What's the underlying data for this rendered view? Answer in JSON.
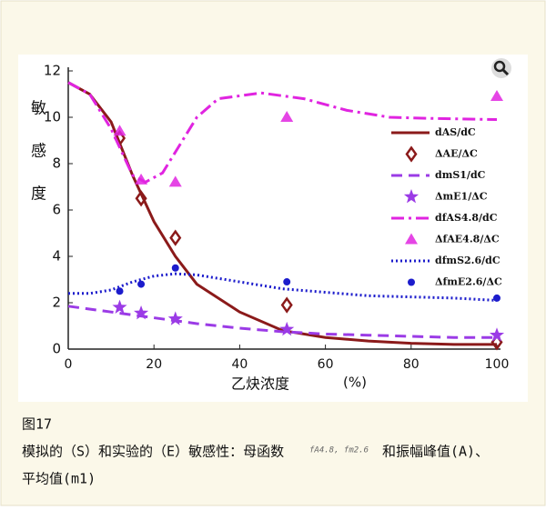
{
  "chart_data": {
    "type": "line",
    "ylabel": "敏感度",
    "xlabel": "乙炔浓度",
    "xunit": "(%)",
    "xlim": [
      0,
      100
    ],
    "xticks": [
      0,
      20,
      40,
      60,
      80,
      100
    ],
    "ylim": [
      0,
      12
    ],
    "yticks": [
      0,
      2,
      4,
      6,
      8,
      10,
      12
    ],
    "legend": "upper right",
    "series": [
      {
        "name": "dAS/dC",
        "color": "#8b1a1a",
        "style": "solid",
        "x": [
          0,
          5,
          10,
          15,
          20,
          25,
          30,
          40,
          50,
          60,
          70,
          80,
          90,
          100
        ],
        "values": [
          11.5,
          11,
          9.8,
          7.5,
          5.5,
          4,
          2.8,
          1.6,
          0.8,
          0.5,
          0.35,
          0.25,
          0.2,
          0.2
        ]
      },
      {
        "name": "ΔAE/ΔC",
        "color": "#8b1a1a",
        "marker": "diamond",
        "x": [
          12,
          17,
          25,
          51,
          100
        ],
        "values": [
          9.1,
          6.5,
          4.8,
          1.9,
          0.3
        ]
      },
      {
        "name": "dmS1/dC",
        "color": "#9b3be6",
        "style": "dashed",
        "x": [
          0,
          10,
          20,
          30,
          40,
          50,
          60,
          70,
          80,
          90,
          100
        ],
        "values": [
          1.85,
          1.6,
          1.35,
          1.1,
          0.9,
          0.75,
          0.65,
          0.6,
          0.55,
          0.5,
          0.5
        ]
      },
      {
        "name": "ΔmE1/ΔC",
        "color": "#9b3be6",
        "marker": "star",
        "x": [
          12,
          17,
          25,
          51,
          100
        ],
        "values": [
          1.8,
          1.55,
          1.3,
          0.85,
          0.6
        ]
      },
      {
        "name": "dfAS4.8/dC",
        "color": "#e024e0",
        "style": "dashdot",
        "x": [
          0,
          5,
          10,
          15,
          18,
          22,
          26,
          30,
          35,
          45,
          55,
          65,
          75,
          85,
          100
        ],
        "values": [
          11.5,
          11,
          9.5,
          7.5,
          7.2,
          7.6,
          8.8,
          10,
          10.8,
          11.05,
          10.8,
          10.3,
          10,
          9.95,
          9.9
        ]
      },
      {
        "name": "ΔfAE4.8/ΔC",
        "color": "#e024e0",
        "marker": "triangle",
        "x": [
          12,
          17,
          25,
          51,
          100
        ],
        "values": [
          9.4,
          7.3,
          7.2,
          10,
          10.9
        ]
      },
      {
        "name": "dfmS2.6/dC",
        "color": "#1c1ccc",
        "style": "dotted",
        "x": [
          0,
          5,
          10,
          15,
          20,
          25,
          30,
          40,
          50,
          60,
          70,
          80,
          90,
          100
        ],
        "values": [
          2.4,
          2.4,
          2.55,
          2.9,
          3.15,
          3.25,
          3.2,
          2.9,
          2.6,
          2.45,
          2.3,
          2.25,
          2.2,
          2.1
        ]
      },
      {
        "name": "ΔfmE2.6/ΔC",
        "color": "#1c1ccc",
        "marker": "circle",
        "x": [
          12,
          17,
          25,
          51,
          100
        ],
        "values": [
          2.5,
          2.8,
          3.5,
          2.9,
          2.2
        ]
      }
    ]
  },
  "caption": {
    "figure": "图17",
    "parts": [
      "模拟的（S）和实验的（E）敏感性：母函数",
      "fA4.8, fm2.6",
      "和振幅峰值(A)、",
      "平均值(m1)"
    ]
  }
}
